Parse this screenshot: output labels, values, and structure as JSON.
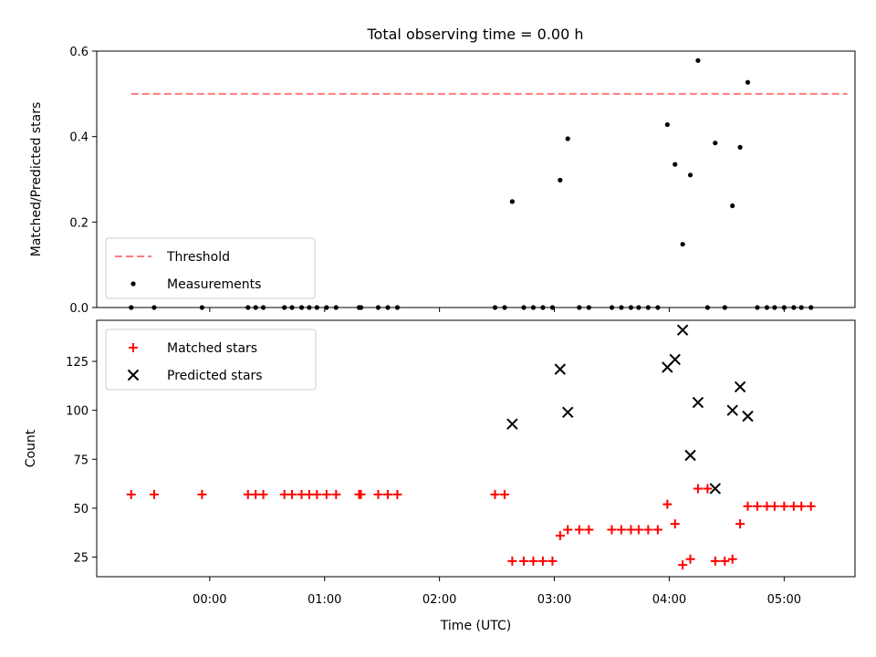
{
  "figure": {
    "title": "Total observing time = 0.00 h"
  },
  "chart_data": [
    {
      "type": "line",
      "panel": "top",
      "ylabel": "Matched/Predicted stars",
      "ylim": [
        0,
        0.6
      ],
      "xlim": [
        "23:01",
        "05:37"
      ],
      "y_ticks": [
        {
          "value": 0.0,
          "label": "0.0"
        },
        {
          "value": 0.2,
          "label": "0.2"
        },
        {
          "value": 0.4,
          "label": "0.4"
        },
        {
          "value": 0.6,
          "label": "0.6"
        }
      ],
      "legend_position": "lower-left",
      "series": [
        {
          "name": "Threshold",
          "kind": "dashed-line",
          "color": "#ff7b7b",
          "points": [
            [
              "23:19",
              0.5
            ],
            [
              "05:33",
              0.5
            ]
          ]
        },
        {
          "name": "Measurements",
          "kind": "scatter-dot",
          "color": "#000000",
          "points": [
            [
              "23:19",
              0
            ],
            [
              "23:31",
              0
            ],
            [
              "23:56",
              0
            ],
            [
              "00:20",
              0
            ],
            [
              "00:24",
              0
            ],
            [
              "00:28",
              0
            ],
            [
              "00:39",
              0
            ],
            [
              "00:43",
              0
            ],
            [
              "00:48",
              0
            ],
            [
              "00:52",
              0
            ],
            [
              "00:56",
              0
            ],
            [
              "01:01",
              0
            ],
            [
              "01:06",
              0
            ],
            [
              "01:18",
              0
            ],
            [
              "01:19",
              0
            ],
            [
              "01:28",
              0
            ],
            [
              "01:33",
              0
            ],
            [
              "01:38",
              0
            ],
            [
              "02:29",
              0
            ],
            [
              "02:34",
              0
            ],
            [
              "02:38",
              0.248
            ],
            [
              "02:44",
              0
            ],
            [
              "02:49",
              0
            ],
            [
              "02:54",
              0
            ],
            [
              "02:59",
              0
            ],
            [
              "03:03",
              0.298
            ],
            [
              "03:07",
              0.395
            ],
            [
              "03:13",
              0
            ],
            [
              "03:18",
              0
            ],
            [
              "03:30",
              0
            ],
            [
              "03:35",
              0
            ],
            [
              "03:40",
              0
            ],
            [
              "03:44",
              0
            ],
            [
              "03:49",
              0
            ],
            [
              "03:54",
              0
            ],
            [
              "03:59",
              0.428
            ],
            [
              "04:03",
              0.335
            ],
            [
              "04:07",
              0.148
            ],
            [
              "04:11",
              0.31
            ],
            [
              "04:15",
              0.578
            ],
            [
              "04:20",
              0
            ],
            [
              "04:24",
              0.385
            ],
            [
              "04:29",
              0
            ],
            [
              "04:33",
              0.238
            ],
            [
              "04:37",
              0.375
            ],
            [
              "04:41",
              0.527
            ],
            [
              "04:46",
              0
            ],
            [
              "04:51",
              0
            ],
            [
              "04:55",
              0
            ],
            [
              "05:00",
              0
            ],
            [
              "05:05",
              0
            ],
            [
              "05:09",
              0
            ],
            [
              "05:14",
              0
            ]
          ]
        }
      ]
    },
    {
      "type": "scatter",
      "panel": "bottom",
      "xlabel": "Time (UTC)",
      "ylabel": "Count",
      "ylim": [
        15,
        146
      ],
      "xlim": [
        "23:01",
        "05:37"
      ],
      "x_ticks": [
        {
          "value": "00:00",
          "label": "00:00"
        },
        {
          "value": "01:00",
          "label": "01:00"
        },
        {
          "value": "02:00",
          "label": "02:00"
        },
        {
          "value": "03:00",
          "label": "03:00"
        },
        {
          "value": "04:00",
          "label": "04:00"
        },
        {
          "value": "05:00",
          "label": "05:00"
        }
      ],
      "y_ticks": [
        {
          "value": 25,
          "label": "25"
        },
        {
          "value": 50,
          "label": "50"
        },
        {
          "value": 75,
          "label": "75"
        },
        {
          "value": 100,
          "label": "100"
        },
        {
          "value": 125,
          "label": "125"
        }
      ],
      "legend_position": "upper-left",
      "series": [
        {
          "name": "Matched stars",
          "kind": "plus",
          "color": "#ff0000",
          "points": [
            [
              "23:19",
              57
            ],
            [
              "23:31",
              57
            ],
            [
              "23:56",
              57
            ],
            [
              "00:20",
              57
            ],
            [
              "00:24",
              57
            ],
            [
              "00:28",
              57
            ],
            [
              "00:39",
              57
            ],
            [
              "00:43",
              57
            ],
            [
              "00:48",
              57
            ],
            [
              "00:52",
              57
            ],
            [
              "00:56",
              57
            ],
            [
              "01:01",
              57
            ],
            [
              "01:06",
              57
            ],
            [
              "01:18",
              57
            ],
            [
              "01:19",
              57
            ],
            [
              "01:28",
              57
            ],
            [
              "01:33",
              57
            ],
            [
              "01:38",
              57
            ],
            [
              "02:29",
              57
            ],
            [
              "02:34",
              57
            ],
            [
              "02:38",
              23
            ],
            [
              "02:44",
              23
            ],
            [
              "02:49",
              23
            ],
            [
              "02:54",
              23
            ],
            [
              "02:59",
              23
            ],
            [
              "03:03",
              36
            ],
            [
              "03:07",
              39
            ],
            [
              "03:13",
              39
            ],
            [
              "03:18",
              39
            ],
            [
              "03:30",
              39
            ],
            [
              "03:35",
              39
            ],
            [
              "03:40",
              39
            ],
            [
              "03:44",
              39
            ],
            [
              "03:49",
              39
            ],
            [
              "03:54",
              39
            ],
            [
              "03:59",
              52
            ],
            [
              "04:03",
              42
            ],
            [
              "04:07",
              21
            ],
            [
              "04:11",
              24
            ],
            [
              "04:15",
              60
            ],
            [
              "04:20",
              60
            ],
            [
              "04:24",
              23
            ],
            [
              "04:29",
              23
            ],
            [
              "04:33",
              24
            ],
            [
              "04:37",
              42
            ],
            [
              "04:41",
              51
            ],
            [
              "04:46",
              51
            ],
            [
              "04:51",
              51
            ],
            [
              "04:55",
              51
            ],
            [
              "05:00",
              51
            ],
            [
              "05:05",
              51
            ],
            [
              "05:09",
              51
            ],
            [
              "05:14",
              51
            ]
          ]
        },
        {
          "name": "Predicted stars",
          "kind": "x",
          "color": "#000000",
          "points": [
            [
              "02:38",
              93
            ],
            [
              "03:03",
              121
            ],
            [
              "03:07",
              99
            ],
            [
              "03:59",
              122
            ],
            [
              "04:03",
              126
            ],
            [
              "04:07",
              141
            ],
            [
              "04:11",
              77
            ],
            [
              "04:15",
              104
            ],
            [
              "04:24",
              60
            ],
            [
              "04:33",
              100
            ],
            [
              "04:37",
              112
            ],
            [
              "04:41",
              97
            ]
          ]
        }
      ]
    }
  ]
}
